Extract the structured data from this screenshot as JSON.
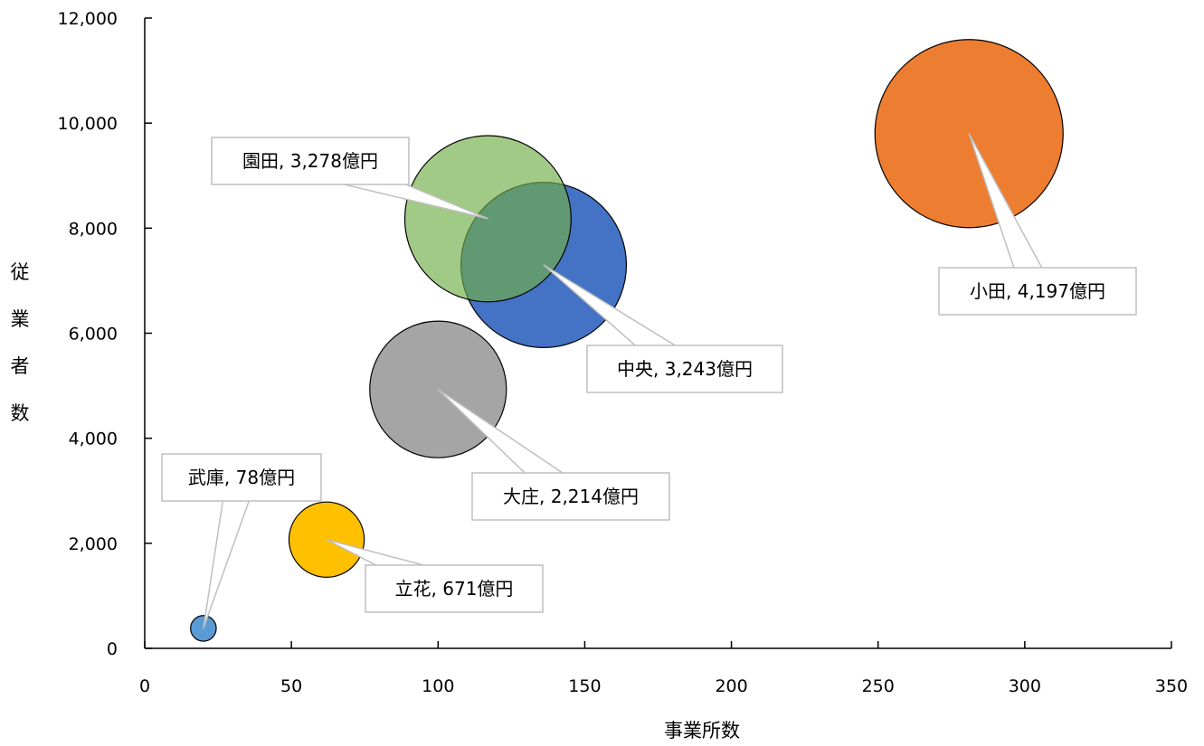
{
  "chart_data": {
    "type": "bubble",
    "xlabel": "事業所数",
    "ylabel": "従業者数",
    "xlim": [
      0,
      350
    ],
    "ylim": [
      0,
      12000
    ],
    "x_ticks": [
      "0",
      "50",
      "100",
      "150",
      "200",
      "250",
      "300",
      "350"
    ],
    "y_ticks": [
      "0",
      "2,000",
      "4,000",
      "6,000",
      "8,000",
      "10,000",
      "12,000"
    ],
    "points": [
      {
        "label": "武庫, 78億円",
        "x": 20,
        "y": 380,
        "size": 78,
        "color": "#5b9bd5",
        "opacity": 1.0
      },
      {
        "label": "立花, 671億円",
        "x": 62,
        "y": 2070,
        "size": 671,
        "color": "#ffc000",
        "opacity": 1.0
      },
      {
        "label": "大庄, 2,214億円",
        "x": 100,
        "y": 4930,
        "size": 2214,
        "color": "#a5a5a5",
        "opacity": 1.0
      },
      {
        "label": "中央, 3,243億円",
        "x": 136,
        "y": 7300,
        "size": 3243,
        "color": "#4472c4",
        "opacity": 1.0
      },
      {
        "label": "園田, 3,278億円",
        "x": 117,
        "y": 8180,
        "size": 3278,
        "color": "#70ad47",
        "opacity": 0.65
      },
      {
        "label": "小田, 4,197億円",
        "x": 281,
        "y": 9800,
        "size": 4197,
        "color": "#ed7d31",
        "opacity": 1.0
      }
    ]
  }
}
